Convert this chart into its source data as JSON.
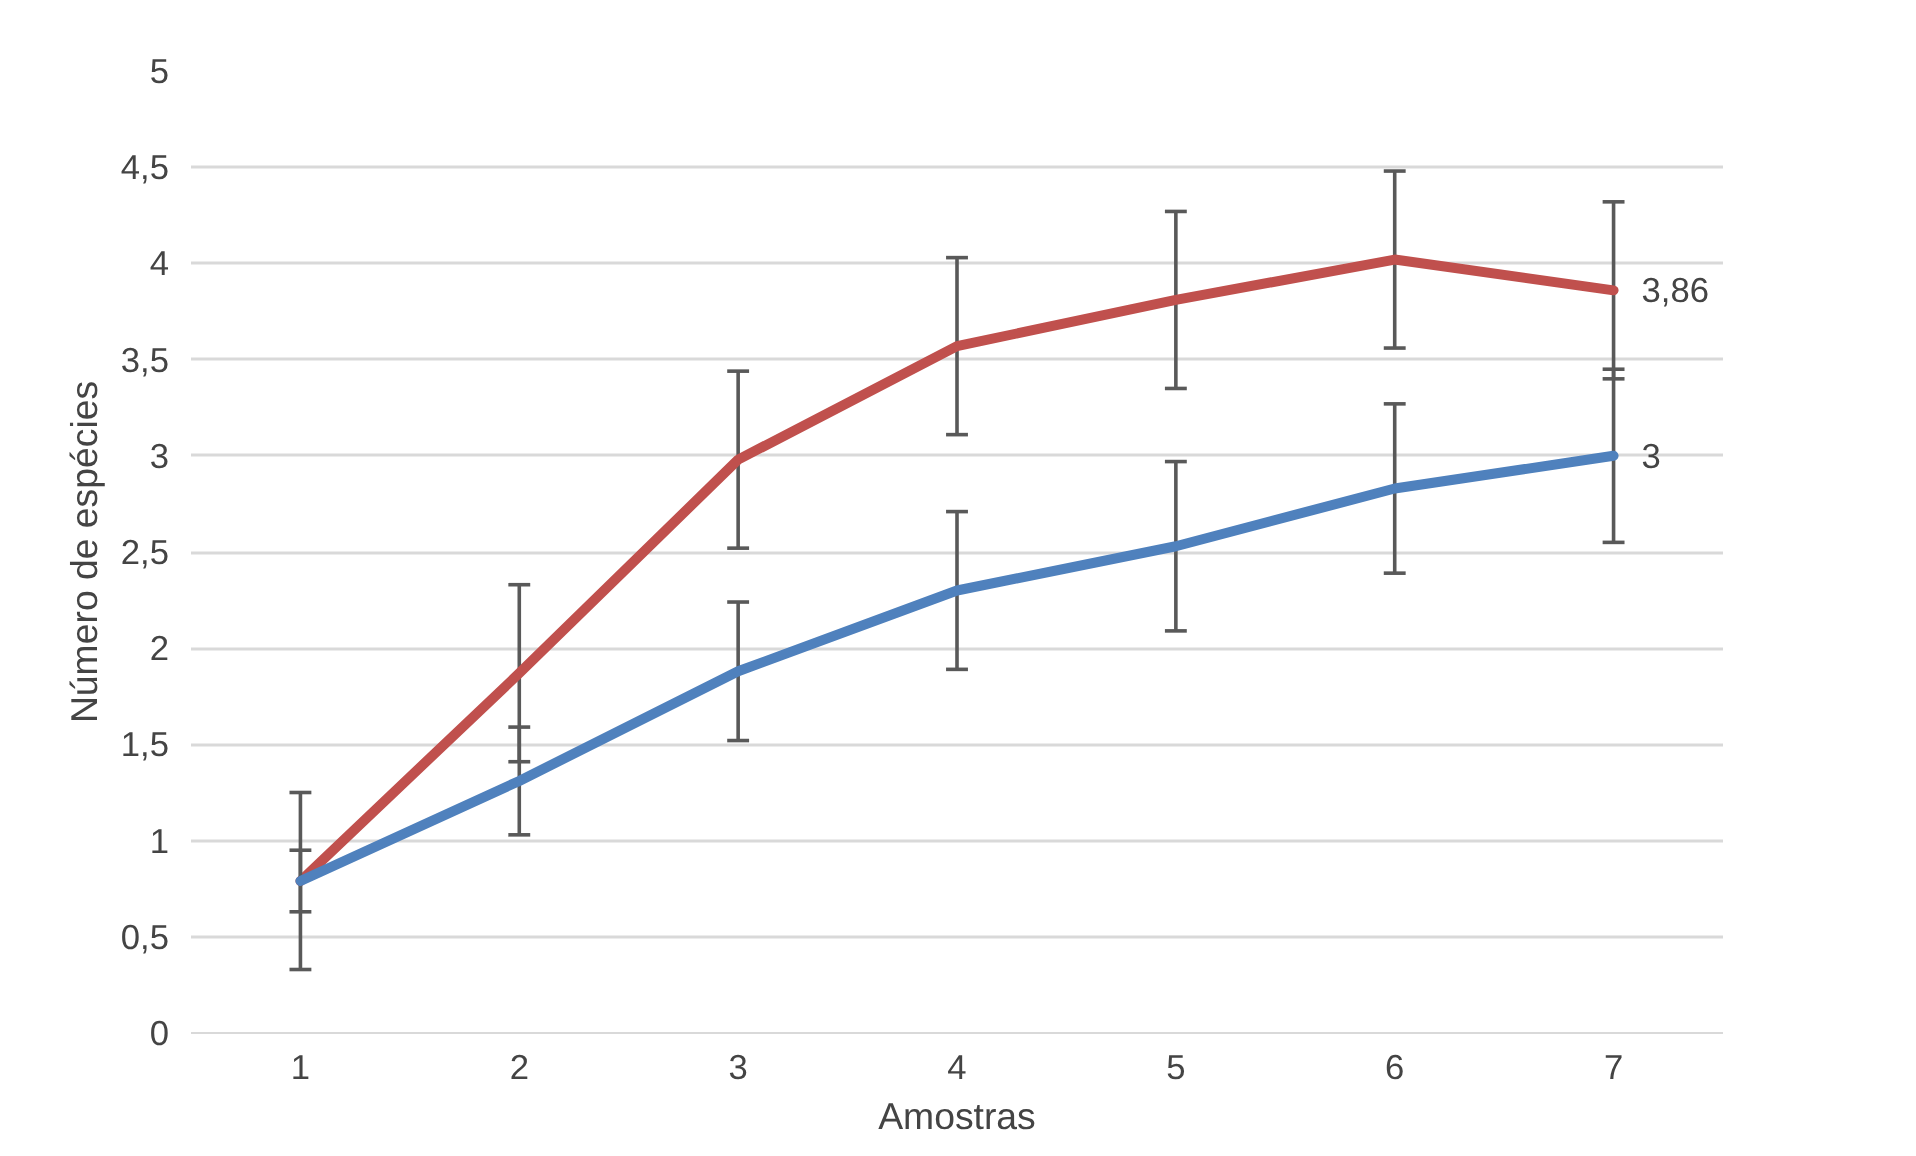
{
  "chart_data": {
    "type": "line",
    "xlabel": "Amostras",
    "ylabel": "Número de espécies",
    "categories": [
      "1",
      "2",
      "3",
      "4",
      "5",
      "6",
      "7"
    ],
    "series": [
      {
        "color": "#c0504d",
        "values": [
          0.79,
          1.87,
          2.98,
          3.57,
          3.81,
          4.02,
          3.86
        ],
        "errors": [
          0.46,
          0.46,
          0.46,
          0.46,
          0.46,
          0.46,
          0.46
        ],
        "value_labels": [
          null,
          null,
          null,
          null,
          null,
          null,
          "3,86"
        ]
      },
      {
        "color": "#4f81bd",
        "values": [
          0.79,
          1.31,
          1.88,
          2.3,
          2.53,
          2.83,
          3.0
        ],
        "errors": [
          0.16,
          0.28,
          0.36,
          0.41,
          0.44,
          0.44,
          0.45
        ],
        "value_labels": [
          null,
          null,
          null,
          null,
          null,
          null,
          "3"
        ]
      }
    ],
    "ylim": [
      0,
      5
    ],
    "yticks": [
      0,
      {
        "value": 0.5,
        "label": "0,5"
      },
      1,
      {
        "value": 1.5,
        "label": "1,5"
      },
      2,
      {
        "value": 2.5,
        "label": "2,5"
      },
      3,
      {
        "value": 3.5,
        "label": "3,5"
      },
      4,
      {
        "value": 4.5,
        "label": "4,5"
      },
      5
    ],
    "grid": "y",
    "marker": "none",
    "line_style": "solid"
  }
}
